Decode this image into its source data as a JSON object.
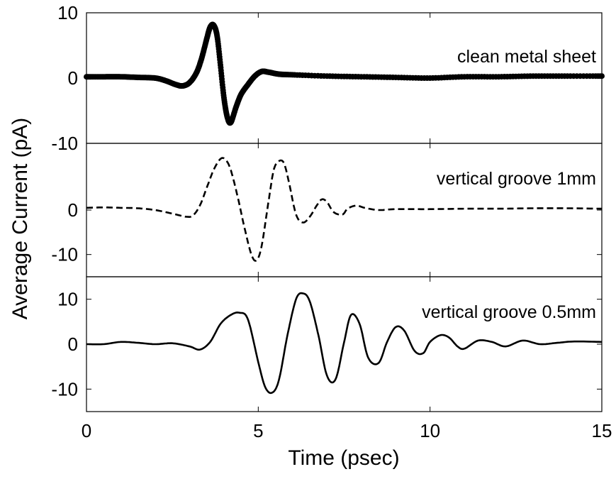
{
  "chart_data": {
    "type": "line",
    "xlabel": "Time (psec)",
    "ylabel": "Average Current (pA)",
    "xlim": [
      0,
      15
    ],
    "x_ticks": [
      0,
      5,
      10,
      15
    ],
    "grid": false,
    "panels": [
      {
        "annotation": "clean metal sheet",
        "ylim": [
          -10,
          10
        ],
        "y_ticks": [
          10,
          0,
          -10
        ],
        "style": "dots",
        "series": [
          {
            "x": [
              0,
              0.5,
              1.0,
              1.5,
              2.0,
              2.3,
              2.6,
              2.8,
              3.0,
              3.2,
              3.35,
              3.5,
              3.6,
              3.7,
              3.8,
              3.9,
              4.0,
              4.1,
              4.2,
              4.35,
              4.5,
              4.7,
              4.9,
              5.1,
              5.3,
              5.6,
              6.0,
              7.0,
              8.0,
              9.0,
              10.0,
              11.0,
              12.0,
              13.0,
              14.0,
              15.0
            ],
            "y": [
              0.2,
              0.2,
              0.2,
              0.1,
              0,
              -0.4,
              -1.0,
              -1.2,
              -0.7,
              0.8,
              3.0,
              6.0,
              7.8,
              8.1,
              6.5,
              2.0,
              -3.0,
              -6.0,
              -6.8,
              -4.5,
              -2.5,
              -1.0,
              0.3,
              1.0,
              0.9,
              0.6,
              0.5,
              0.3,
              0.2,
              0.1,
              0,
              0.2,
              0.2,
              0.3,
              0.3,
              0.3
            ]
          }
        ]
      },
      {
        "annotation": "vertical groove 1mm",
        "ylim": [
          -15,
          15
        ],
        "y_ticks": [
          0,
          -10
        ],
        "style": "dashed",
        "series": [
          {
            "x": [
              0,
              0.5,
              1.0,
              1.5,
              2.0,
              2.5,
              2.9,
              3.1,
              3.3,
              3.5,
              3.7,
              3.9,
              4.05,
              4.2,
              4.4,
              4.6,
              4.8,
              4.95,
              5.1,
              5.3,
              5.45,
              5.6,
              5.75,
              5.9,
              6.1,
              6.3,
              6.5,
              6.7,
              6.85,
              7.0,
              7.2,
              7.45,
              7.6,
              7.85,
              8.1,
              8.5,
              9.0,
              10.0,
              11.0,
              12.0,
              13.0,
              14.0,
              15.0
            ],
            "y": [
              0.5,
              0.6,
              0.5,
              0.4,
              0,
              -0.8,
              -1.5,
              -1.2,
              1.0,
              5.0,
              9.0,
              11.5,
              11.3,
              9.0,
              3.0,
              -4.0,
              -10.0,
              -11.3,
              -8.0,
              2.0,
              9.0,
              11.0,
              10.5,
              6.0,
              -1.0,
              -2.8,
              -1.5,
              1.0,
              2.4,
              1.8,
              -0.5,
              -1.0,
              0.3,
              1.0,
              0.5,
              0,
              0.2,
              0.2,
              0.3,
              0.3,
              0.4,
              0.4,
              0.3
            ]
          }
        ]
      },
      {
        "annotation": "vertical groove 0.5mm",
        "ylim": [
          -15,
          15
        ],
        "y_ticks": [
          10,
          0,
          -10
        ],
        "style": "solid",
        "series": [
          {
            "x": [
              0,
              0.5,
              1.0,
              1.5,
              2.0,
              2.5,
              3.0,
              3.3,
              3.6,
              3.9,
              4.2,
              4.45,
              4.7,
              5.0,
              5.2,
              5.4,
              5.6,
              5.85,
              6.1,
              6.3,
              6.5,
              6.75,
              7.0,
              7.25,
              7.5,
              7.7,
              7.95,
              8.2,
              8.5,
              8.75,
              9.0,
              9.25,
              9.55,
              9.8,
              10.0,
              10.3,
              10.55,
              10.8,
              11.0,
              11.4,
              11.8,
              12.2,
              12.7,
              13.2,
              13.7,
              14.2,
              15.0
            ],
            "y": [
              0,
              0,
              0.5,
              0.3,
              0,
              0.2,
              -0.5,
              -1.2,
              0.5,
              4.5,
              6.5,
              7.0,
              5.5,
              -4.0,
              -9.5,
              -10.8,
              -8.0,
              2.0,
              10.0,
              11.3,
              9.5,
              2.0,
              -7.0,
              -7.8,
              0.5,
              6.5,
              4.5,
              -3.0,
              -4.2,
              0.5,
              3.8,
              3.0,
              -1.5,
              -2.0,
              0.5,
              2.0,
              1.5,
              -0.5,
              -1.0,
              0.8,
              0.5,
              -0.5,
              0.8,
              0,
              0.3,
              0.6,
              0.5
            ]
          }
        ]
      }
    ]
  }
}
